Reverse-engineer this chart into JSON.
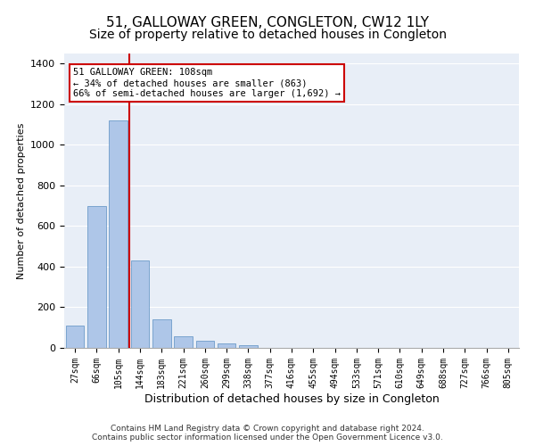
{
  "title": "51, GALLOWAY GREEN, CONGLETON, CW12 1LY",
  "subtitle": "Size of property relative to detached houses in Congleton",
  "xlabel": "Distribution of detached houses by size in Congleton",
  "ylabel": "Number of detached properties",
  "bar_labels": [
    "27sqm",
    "66sqm",
    "105sqm",
    "144sqm",
    "183sqm",
    "221sqm",
    "260sqm",
    "299sqm",
    "338sqm",
    "377sqm",
    "416sqm",
    "455sqm",
    "494sqm",
    "533sqm",
    "571sqm",
    "610sqm",
    "649sqm",
    "688sqm",
    "727sqm",
    "766sqm",
    "805sqm"
  ],
  "bar_values": [
    110,
    700,
    1120,
    430,
    140,
    55,
    35,
    20,
    12,
    0,
    0,
    0,
    0,
    0,
    0,
    0,
    0,
    0,
    0,
    0,
    0
  ],
  "bar_color": "#aec6e8",
  "bar_edge_color": "#5a8fc2",
  "vline_color": "#cc0000",
  "annotation_text": "51 GALLOWAY GREEN: 108sqm\n← 34% of detached houses are smaller (863)\n66% of semi-detached houses are larger (1,692) →",
  "annotation_box_color": "#ffffff",
  "annotation_box_edge": "#cc0000",
  "ylim": [
    0,
    1450
  ],
  "yticks": [
    0,
    200,
    400,
    600,
    800,
    1000,
    1200,
    1400
  ],
  "bg_color": "#e8eef7",
  "grid_color": "#ffffff",
  "footer": "Contains HM Land Registry data © Crown copyright and database right 2024.\nContains public sector information licensed under the Open Government Licence v3.0.",
  "title_fontsize": 11,
  "subtitle_fontsize": 10,
  "xlabel_fontsize": 9,
  "ylabel_fontsize": 8,
  "tick_fontsize": 7,
  "footer_fontsize": 6.5
}
